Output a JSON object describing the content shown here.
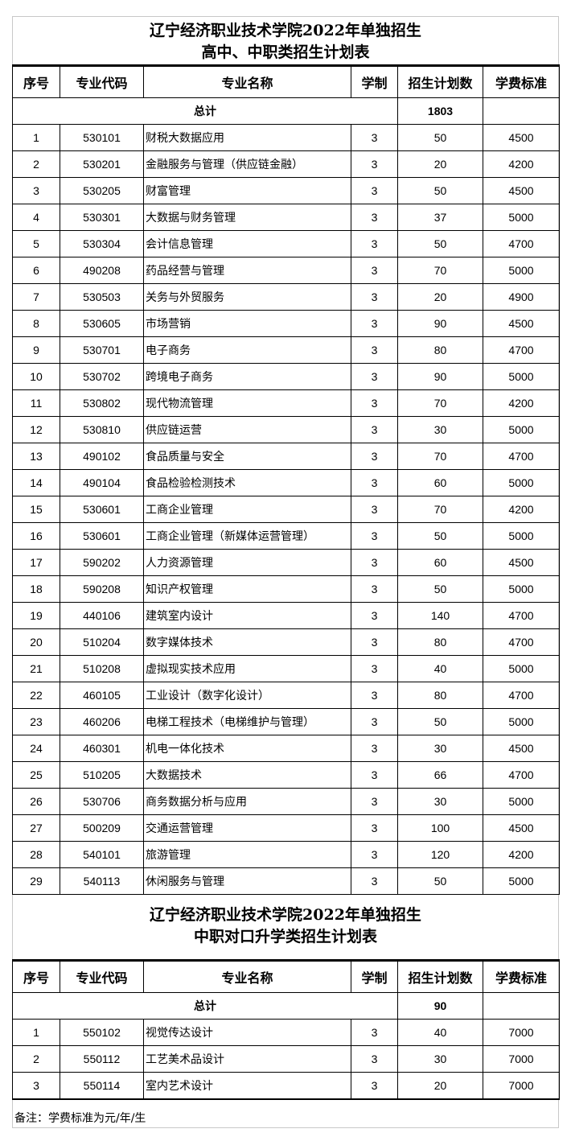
{
  "table1": {
    "title_line1": "辽宁经济职业技术学院2022年单独招生",
    "title_line2": "高中、中职类招生计划表",
    "headers": [
      "序号",
      "专业代码",
      "专业名称",
      "学制",
      "招生计划数",
      "学费标准"
    ],
    "total_label": "总计",
    "total_value": "1803",
    "rows": [
      [
        "1",
        "530101",
        "财税大数据应用",
        "3",
        "50",
        "4500"
      ],
      [
        "2",
        "530201",
        "金融服务与管理（供应链金融）",
        "3",
        "20",
        "4200"
      ],
      [
        "3",
        "530205",
        "财富管理",
        "3",
        "50",
        "4500"
      ],
      [
        "4",
        "530301",
        "大数据与财务管理",
        "3",
        "37",
        "5000"
      ],
      [
        "5",
        "530304",
        "会计信息管理",
        "3",
        "50",
        "4700"
      ],
      [
        "6",
        "490208",
        "药品经营与管理",
        "3",
        "70",
        "5000"
      ],
      [
        "7",
        "530503",
        "关务与外贸服务",
        "3",
        "20",
        "4900"
      ],
      [
        "8",
        "530605",
        "市场营销",
        "3",
        "90",
        "4500"
      ],
      [
        "9",
        "530701",
        "电子商务",
        "3",
        "80",
        "4700"
      ],
      [
        "10",
        "530702",
        "跨境电子商务",
        "3",
        "90",
        "5000"
      ],
      [
        "11",
        "530802",
        "现代物流管理",
        "3",
        "70",
        "4200"
      ],
      [
        "12",
        "530810",
        "供应链运营",
        "3",
        "30",
        "5000"
      ],
      [
        "13",
        "490102",
        "食品质量与安全",
        "3",
        "70",
        "4700"
      ],
      [
        "14",
        "490104",
        "食品检验检测技术",
        "3",
        "60",
        "5000"
      ],
      [
        "15",
        "530601",
        "工商企业管理",
        "3",
        "70",
        "4200"
      ],
      [
        "16",
        "530601",
        "工商企业管理（新媒体运营管理）",
        "3",
        "50",
        "5000"
      ],
      [
        "17",
        "590202",
        "人力资源管理",
        "3",
        "60",
        "4500"
      ],
      [
        "18",
        "590208",
        "知识产权管理",
        "3",
        "50",
        "5000"
      ],
      [
        "19",
        "440106",
        "建筑室内设计",
        "3",
        "140",
        "4700"
      ],
      [
        "20",
        "510204",
        "数字媒体技术",
        "3",
        "80",
        "4700"
      ],
      [
        "21",
        "510208",
        "虚拟现实技术应用",
        "3",
        "40",
        "5000"
      ],
      [
        "22",
        "460105",
        "工业设计（数字化设计）",
        "3",
        "80",
        "4700"
      ],
      [
        "23",
        "460206",
        "电梯工程技术（电梯维护与管理）",
        "3",
        "50",
        "5000"
      ],
      [
        "24",
        "460301",
        "机电一体化技术",
        "3",
        "30",
        "4500"
      ],
      [
        "25",
        "510205",
        "大数据技术",
        "3",
        "66",
        "4700"
      ],
      [
        "26",
        "530706",
        "商务数据分析与应用",
        "3",
        "30",
        "5000"
      ],
      [
        "27",
        "500209",
        "交通运营管理",
        "3",
        "100",
        "4500"
      ],
      [
        "28",
        "540101",
        "旅游管理",
        "3",
        "120",
        "4200"
      ],
      [
        "29",
        "540113",
        "休闲服务与管理",
        "3",
        "50",
        "5000"
      ]
    ]
  },
  "table2": {
    "title_line1": "辽宁经济职业技术学院2022年单独招生",
    "title_line2": "中职对口升学类招生计划表",
    "headers": [
      "序号",
      "专业代码",
      "专业名称",
      "学制",
      "招生计划数",
      "学费标准"
    ],
    "total_label": "总计",
    "total_value": "90",
    "rows": [
      [
        "1",
        "550102",
        "视觉传达设计",
        "3",
        "40",
        "7000"
      ],
      [
        "2",
        "550112",
        "工艺美术品设计",
        "3",
        "30",
        "7000"
      ],
      [
        "3",
        "550114",
        "室内艺术设计",
        "3",
        "20",
        "7000"
      ]
    ]
  },
  "note": "备注：学费标准为元/年/生"
}
